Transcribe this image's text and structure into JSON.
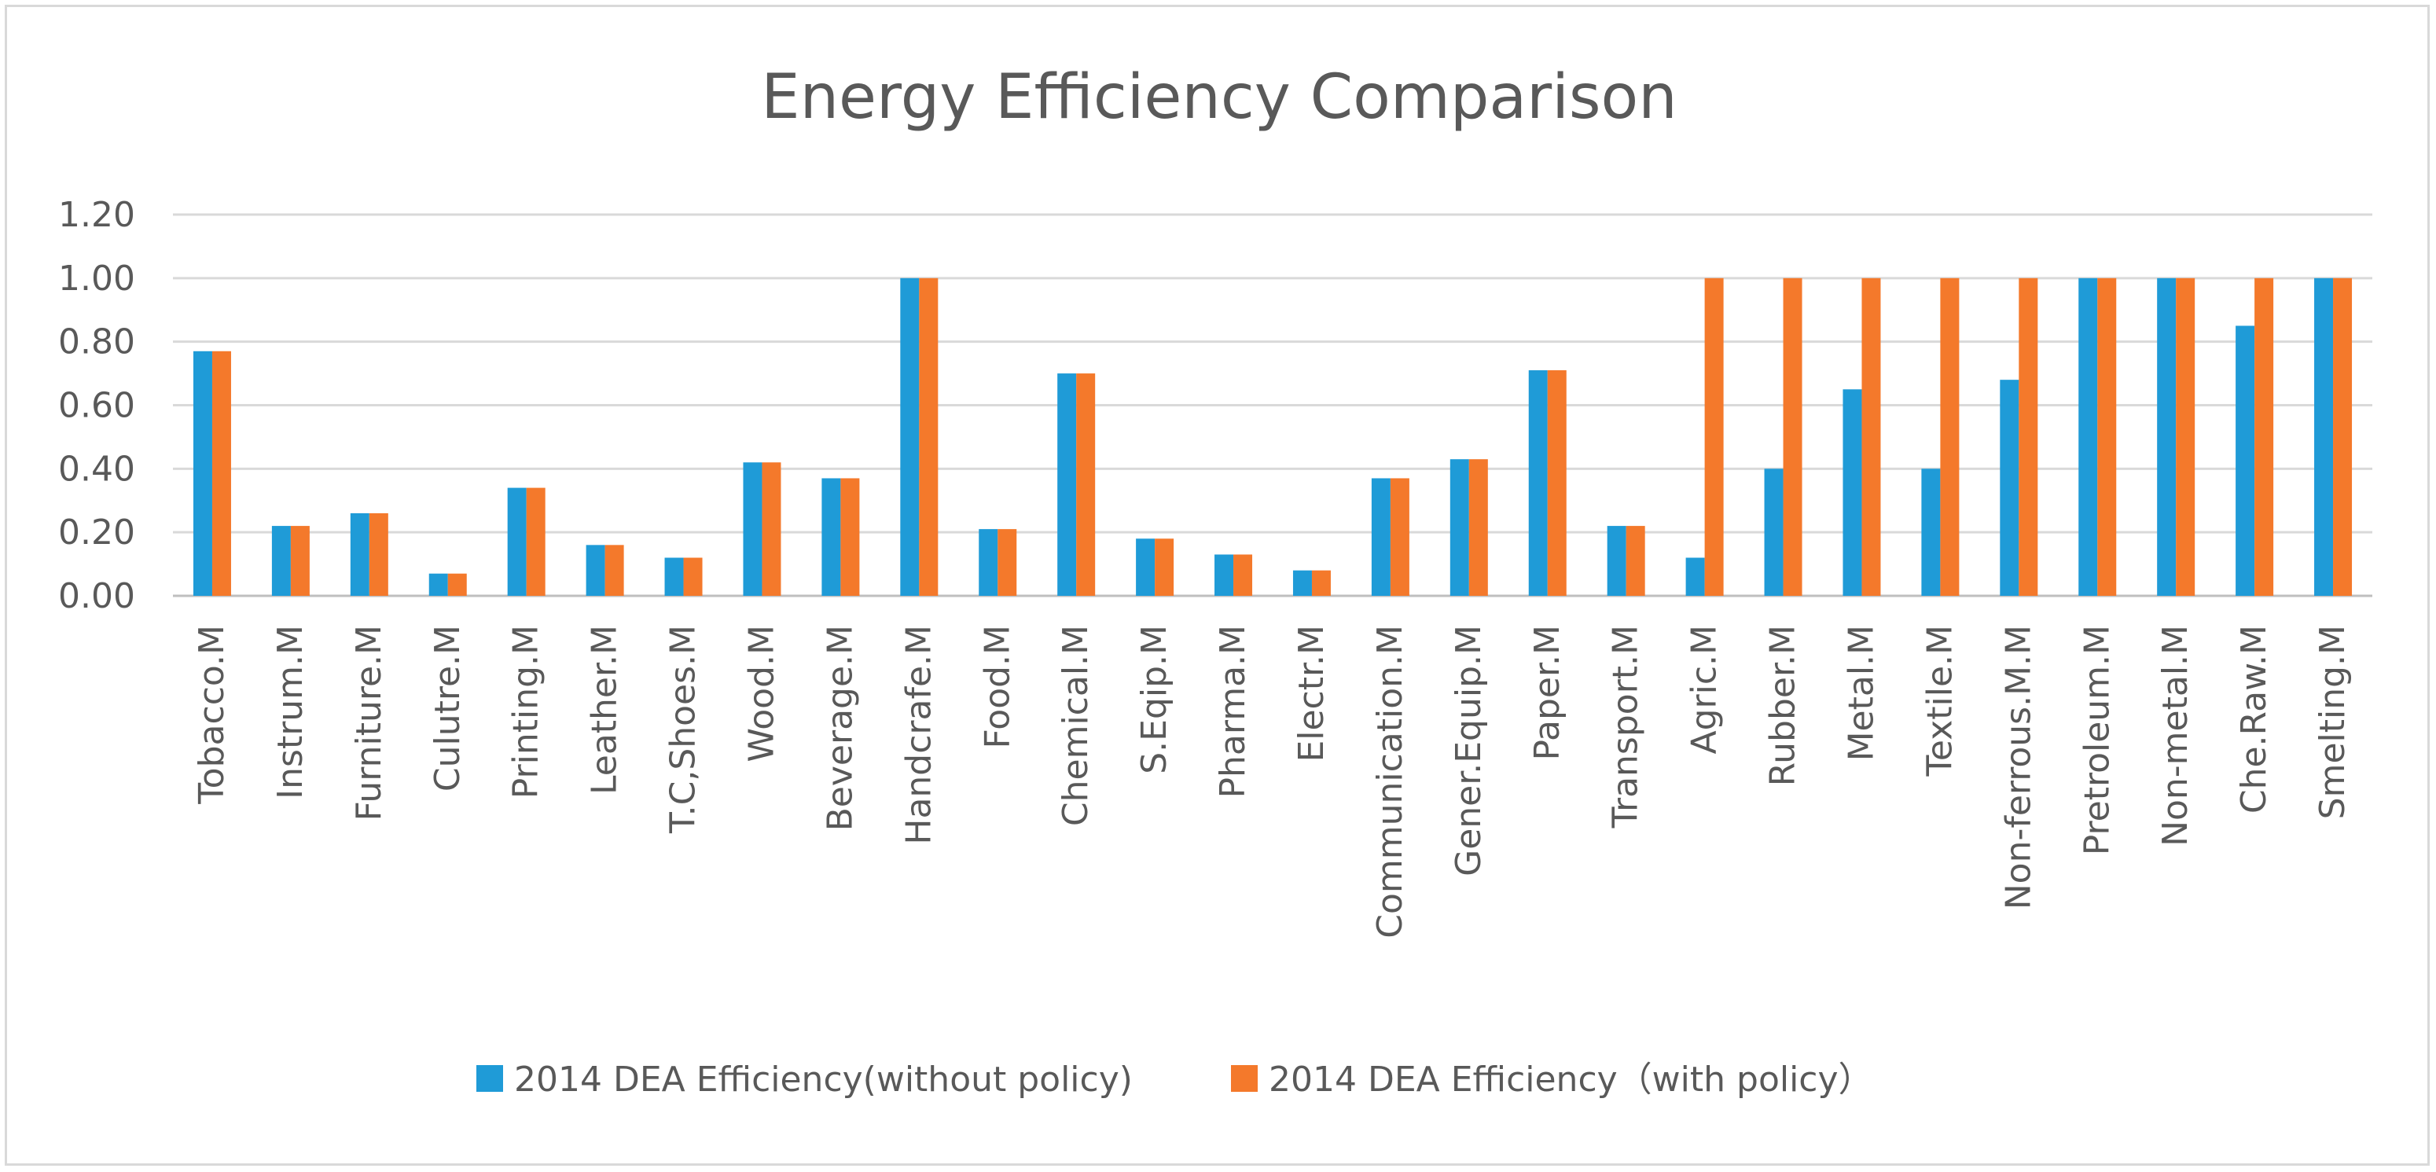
{
  "chart_data": {
    "type": "bar",
    "title": "Energy Efficiency Comparison",
    "xlabel": "",
    "ylabel": "",
    "ylim": [
      0,
      1.2
    ],
    "yticks": [
      "0.00",
      "0.20",
      "0.40",
      "0.60",
      "0.80",
      "1.00",
      "1.20"
    ],
    "grid": true,
    "legend_position": "bottom",
    "categories": [
      "Tobacco.M",
      "Instrum.M",
      "Furniture.M",
      "Culutre.M",
      "Printing.M",
      "Leather.M",
      "T.C,Shoes.M",
      "Wood.M",
      "Beverage.M",
      "Handcrafe.M",
      "Food.M",
      "Chemical.M",
      "S.Eqip.M",
      "Pharma.M",
      "Electr.M",
      "Communication.M",
      "Gener.Equip.M",
      "Paper.M",
      "Transport.M",
      "Agric.M",
      "Rubber.M",
      "Metal.M",
      "Textile.M",
      "Non-ferrous.M.M",
      "Pretroleum.M",
      "Non-metal.M",
      "Che.Raw.M",
      "Smelting.M"
    ],
    "series": [
      {
        "name": "2014 DEA Efficiency(without policy)",
        "color": "#1f9bd7",
        "values": [
          0.77,
          0.22,
          0.26,
          0.07,
          0.34,
          0.16,
          0.12,
          0.42,
          0.37,
          1.0,
          0.21,
          0.7,
          0.18,
          0.13,
          0.08,
          0.37,
          0.43,
          0.71,
          0.22,
          0.12,
          0.4,
          0.65,
          0.4,
          0.68,
          1.0,
          1.0,
          0.85,
          1.0
        ]
      },
      {
        "name": "2014 DEA Efficiency（with policy）",
        "color": "#f4792b",
        "values": [
          0.77,
          0.22,
          0.26,
          0.07,
          0.34,
          0.16,
          0.12,
          0.42,
          0.37,
          1.0,
          0.21,
          0.7,
          0.18,
          0.13,
          0.08,
          0.37,
          0.43,
          0.71,
          0.22,
          1.0,
          1.0,
          1.0,
          1.0,
          1.0,
          1.0,
          1.0,
          1.0,
          1.0
        ]
      }
    ]
  }
}
